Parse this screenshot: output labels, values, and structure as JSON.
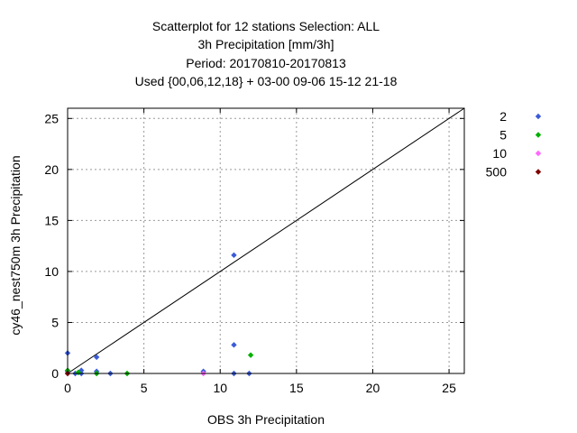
{
  "chart_data": {
    "type": "scatter",
    "title_lines": [
      "Scatterplot for   12 stations Selection: ALL",
      "3h Precipitation [mm/3h]",
      "Period: 20170810-20170813",
      "Used {00,06,12,18} + 03-00 09-06 15-12 21-18"
    ],
    "xlabel": "OBS 3h Precipitation",
    "ylabel": "cy46_nest750m 3h Precipitation",
    "xlim": [
      0,
      26
    ],
    "ylim": [
      0,
      26
    ],
    "xticks": [
      0,
      5,
      10,
      15,
      20,
      25
    ],
    "yticks": [
      0,
      5,
      10,
      15,
      20,
      25
    ],
    "grid": true,
    "legend_position": "right-outside",
    "diagonal": true,
    "series": [
      {
        "name": "2",
        "color": "#3a5bd9",
        "points": [
          [
            0.0,
            2.0
          ],
          [
            0.0,
            0.2
          ],
          [
            0.5,
            0.0
          ],
          [
            0.9,
            0.0
          ],
          [
            0.9,
            0.3
          ],
          [
            1.9,
            1.6
          ],
          [
            1.9,
            0.2
          ],
          [
            2.8,
            0.0
          ],
          [
            8.9,
            0.2
          ],
          [
            10.9,
            11.6
          ],
          [
            10.9,
            2.8
          ],
          [
            10.9,
            0.0
          ],
          [
            11.9,
            0.0
          ]
        ]
      },
      {
        "name": "5",
        "color": "#00b000",
        "points": [
          [
            0.0,
            0.3
          ],
          [
            0.7,
            0.1
          ],
          [
            1.9,
            0.0
          ],
          [
            3.9,
            0.0
          ],
          [
            12.0,
            1.8
          ]
        ]
      },
      {
        "name": "10",
        "color": "#ff66ff",
        "points": [
          [
            8.9,
            0.0
          ]
        ]
      },
      {
        "name": "500",
        "color": "#800000",
        "points": [
          [
            0.0,
            0.0
          ]
        ]
      }
    ]
  }
}
